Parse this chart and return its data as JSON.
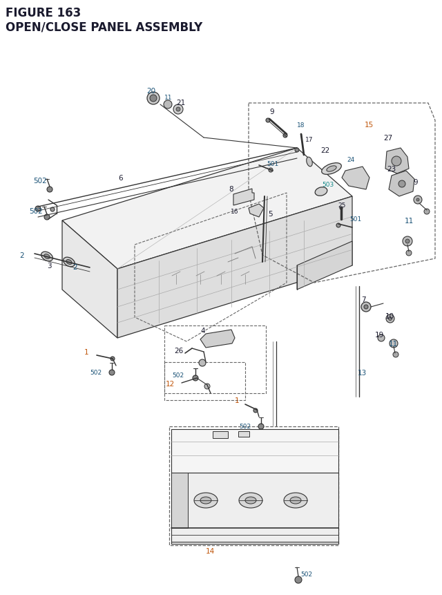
{
  "title_line1": "FIGURE 163",
  "title_line2": "OPEN/CLOSE PANEL ASSEMBLY",
  "title_color": "#1a1a2e",
  "title_fontsize": 12,
  "bg_color": "#ffffff",
  "lc": "#2c2c2c",
  "cc": "#333333",
  "bc": "#666666",
  "black": "#1a1a2e",
  "blue": "#1a5276",
  "orange": "#c0550a",
  "teal": "#148a8a"
}
